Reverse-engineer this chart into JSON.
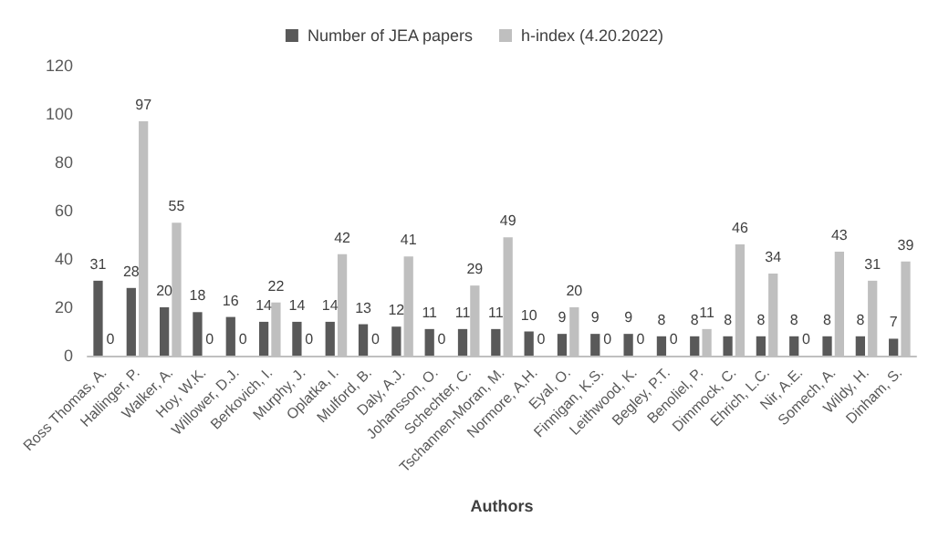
{
  "chart_data": {
    "type": "bar",
    "xlabel": "Authors",
    "categories": [
      "Ross Thomas, A.",
      "Hallinger, P.",
      "Walker, A.",
      "Hoy, W.K.",
      "Willower, D.J.",
      "Berkovich, I.",
      "Murphy, J.",
      "Oplatka, I.",
      "Mulford, B.",
      "Daly, A.J.",
      "Johansson, O.",
      "Schechter, C.",
      "Tschannen-Moran, M.",
      "Normore, A.H.",
      "Eyal, O.",
      "Finnigan, K.S.",
      "Leithwood, K.",
      "Begley, P.T.",
      "Benoliel, P.",
      "Dimmock, C.",
      "Ehrich, L.C.",
      "Nir, A.E.",
      "Somech, A.",
      "Wildy, H.",
      "Dinham, S."
    ],
    "series": [
      {
        "name": "Number of JEA papers",
        "color": "#595959",
        "values": [
          31,
          28,
          20,
          18,
          16,
          14,
          14,
          14,
          13,
          12,
          11,
          11,
          11,
          10,
          9,
          9,
          9,
          8,
          8,
          8,
          8,
          8,
          8,
          8,
          7
        ]
      },
      {
        "name": "h-index (4.20.2022)",
        "color": "#bfbfbf",
        "values": [
          0,
          97,
          55,
          0,
          0,
          22,
          0,
          42,
          0,
          41,
          0,
          29,
          49,
          0,
          20,
          0,
          0,
          0,
          11,
          46,
          34,
          0,
          43,
          31,
          39
        ]
      }
    ],
    "ylim": [
      0,
      120
    ],
    "yticks": [
      0,
      20,
      40,
      60,
      80,
      100,
      120
    ],
    "grid": false,
    "legend": "top",
    "data_labels": true
  }
}
